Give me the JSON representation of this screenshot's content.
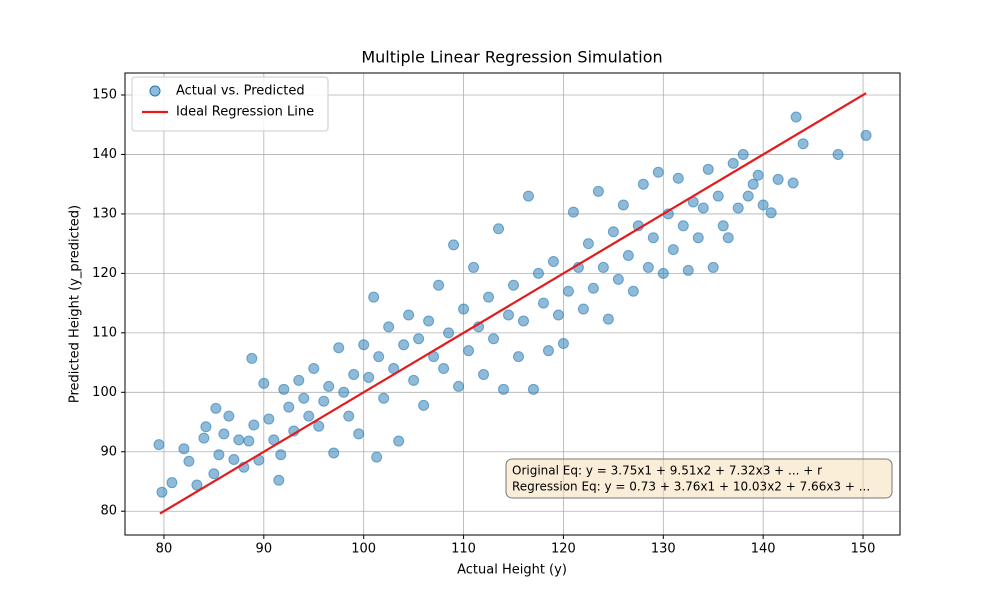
{
  "chart_data": {
    "type": "scatter",
    "title": "Multiple Linear Regression Simulation",
    "x_label": "Actual Height (y)",
    "y_label": "Predicted Height (y_predicted)",
    "xlim": [
      76.1,
      153.7
    ],
    "ylim": [
      76,
      153.7
    ],
    "xticks": [
      80,
      90,
      100,
      110,
      120,
      130,
      140,
      150
    ],
    "yticks": [
      80,
      90,
      100,
      110,
      120,
      130,
      140,
      150
    ],
    "grid": true,
    "legend": "upper left",
    "annotation": [
      "Original Eq: y = 3.75x1 + 9.51x2 + 7.32x3 + ... + r",
      "Regression Eq: y = 0.73 + 3.76x1 + 10.03x2 + 7.66x3 + ..."
    ],
    "series": [
      {
        "name": "Actual vs. Predicted",
        "type": "scatter",
        "color": "#1f77b4",
        "x": [
          79.5,
          79.8,
          80.8,
          82,
          82.5,
          83.3,
          84,
          84.2,
          85,
          85.2,
          85.5,
          86,
          86.5,
          87,
          87.5,
          88,
          88.5,
          88.8,
          89,
          89.5,
          90,
          90.5,
          91,
          91.5,
          91.7,
          92,
          92.5,
          93,
          93.5,
          94,
          94.5,
          95,
          95.5,
          96,
          96.5,
          97,
          97.5,
          98,
          98.5,
          99,
          99.5,
          100,
          100.5,
          101,
          101.3,
          101.5,
          102,
          102.5,
          103,
          103.5,
          104,
          104.5,
          105,
          105.5,
          106,
          106.5,
          107,
          107.5,
          108,
          108.5,
          109,
          109.5,
          110,
          110.5,
          111,
          111.5,
          112,
          112.5,
          113,
          113.5,
          114,
          114.5,
          115,
          115.5,
          116,
          116.5,
          117,
          117.5,
          118,
          118.5,
          119,
          119.5,
          120,
          120.5,
          121,
          121.5,
          122,
          122.5,
          123,
          123.5,
          124,
          124.5,
          125,
          125.5,
          126,
          126.5,
          127,
          127.5,
          128,
          128.5,
          129,
          129.5,
          130,
          130.5,
          131,
          131.5,
          132,
          132.5,
          133,
          133.5,
          134,
          134.5,
          135,
          135.5,
          136,
          136.5,
          137,
          137.5,
          138,
          138.5,
          139,
          139.5,
          140,
          140.8,
          141.5,
          143,
          143.3,
          144,
          147.5,
          150.3
        ],
        "values": [
          91.2,
          83.2,
          84.8,
          90.5,
          88.4,
          84.4,
          92.3,
          94.2,
          86.3,
          97.3,
          89.5,
          93,
          96,
          88.7,
          92,
          87.4,
          91.8,
          105.7,
          94.5,
          88.6,
          101.5,
          95.5,
          92,
          85.2,
          89.5,
          100.5,
          97.5,
          93.5,
          102,
          99,
          96,
          104,
          94.3,
          98.5,
          101,
          89.8,
          107.5,
          100,
          96,
          103,
          93,
          108,
          102.5,
          116,
          89.1,
          106,
          99,
          111,
          104,
          91.8,
          108,
          113,
          102,
          109,
          97.8,
          112,
          106,
          118,
          104,
          110,
          124.8,
          101,
          114,
          107,
          121,
          111,
          103,
          116,
          109,
          127.5,
          100.5,
          113,
          118,
          106,
          112,
          133,
          100.5,
          120,
          115,
          107,
          122,
          113,
          108.2,
          117,
          130.3,
          121,
          114,
          125,
          117.5,
          133.8,
          121,
          112.3,
          127,
          119,
          131.5,
          123,
          117,
          128,
          135,
          121,
          126,
          137,
          120,
          130,
          124,
          136,
          128,
          120.5,
          132,
          126,
          131,
          137.5,
          121,
          133,
          128,
          126,
          138.5,
          131,
          140,
          133,
          135,
          136.5,
          131.5,
          130.2,
          135.8,
          135.2,
          146.3,
          141.8,
          140,
          143.2
        ]
      },
      {
        "name": "Ideal Regression Line",
        "type": "line",
        "color": "#e41a1c",
        "x": [
          79.6,
          150.3
        ],
        "values": [
          79.6,
          150.3
        ]
      }
    ]
  }
}
